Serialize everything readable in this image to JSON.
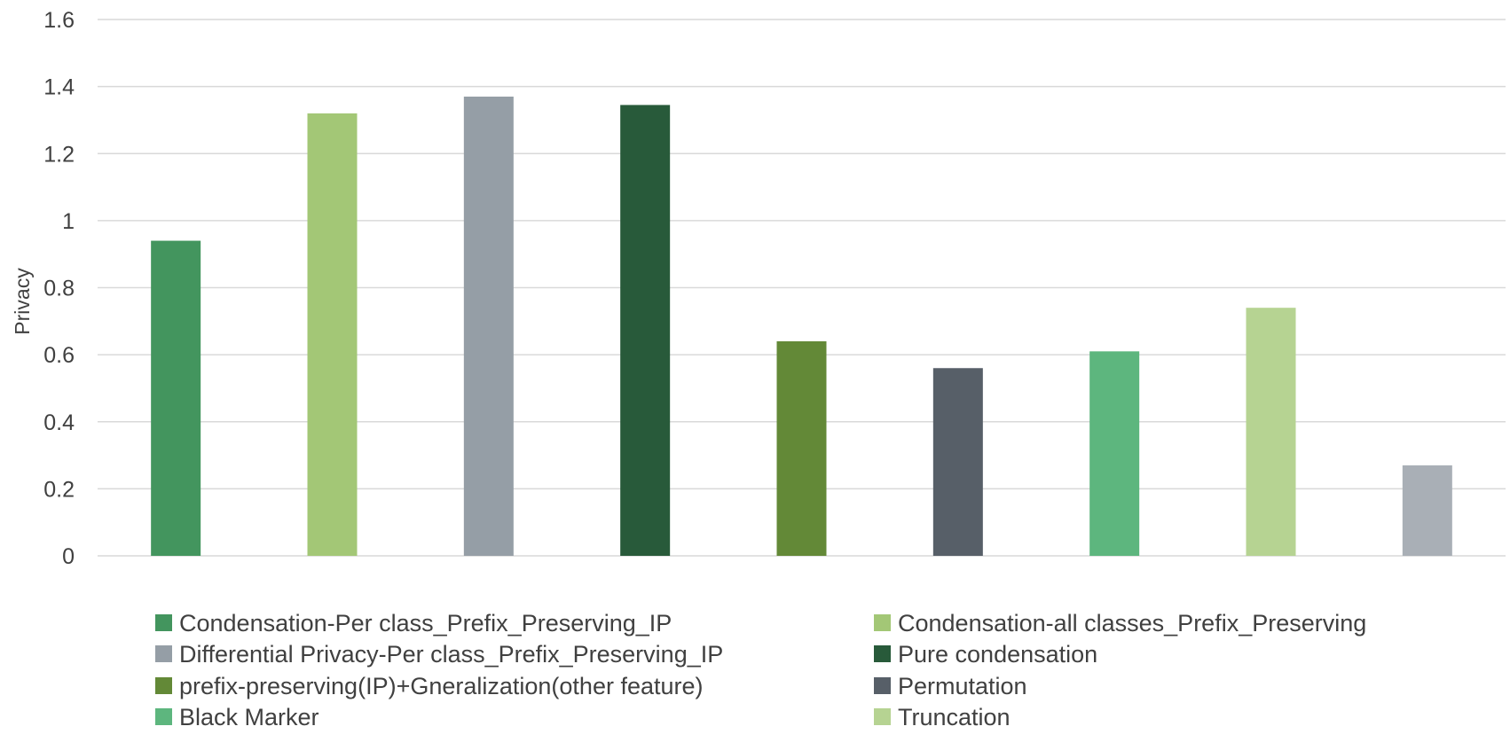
{
  "chart_data": {
    "type": "bar",
    "title": "",
    "xlabel": "",
    "ylabel": "Privacy",
    "ylim": [
      0,
      1.6
    ],
    "yticks": [
      "0",
      "0.2",
      "0.4",
      "0.6",
      "0.8",
      "1",
      "1.2",
      "1.4",
      "1.6"
    ],
    "grid": true,
    "legend_position": "bottom",
    "series": [
      {
        "name": "Condensation-Per class_Prefix_Preserving_IP",
        "value": 0.94,
        "color": "#43955E"
      },
      {
        "name": "Condensation-all classes_Prefix_Preserving",
        "value": 1.32,
        "color": "#A3C776"
      },
      {
        "name": "Differential Privacy-Per class_Prefix_Preserving_IP",
        "value": 1.37,
        "color": "#959EA6"
      },
      {
        "name": "Pure condensation",
        "value": 1.345,
        "color": "#285A3A"
      },
      {
        "name": "prefix-preserving(IP)+Gneralization(other feature)",
        "value": 0.64,
        "color": "#638937"
      },
      {
        "name": "Permutation",
        "value": 0.56,
        "color": "#575F68"
      },
      {
        "name": "Black Marker",
        "value": 0.61,
        "color": "#5DB67E"
      },
      {
        "name": "Truncation",
        "value": 0.74,
        "color": "#B6D392"
      },
      {
        "name": "",
        "value": 0.27,
        "color": "#A9AFB6"
      }
    ]
  }
}
